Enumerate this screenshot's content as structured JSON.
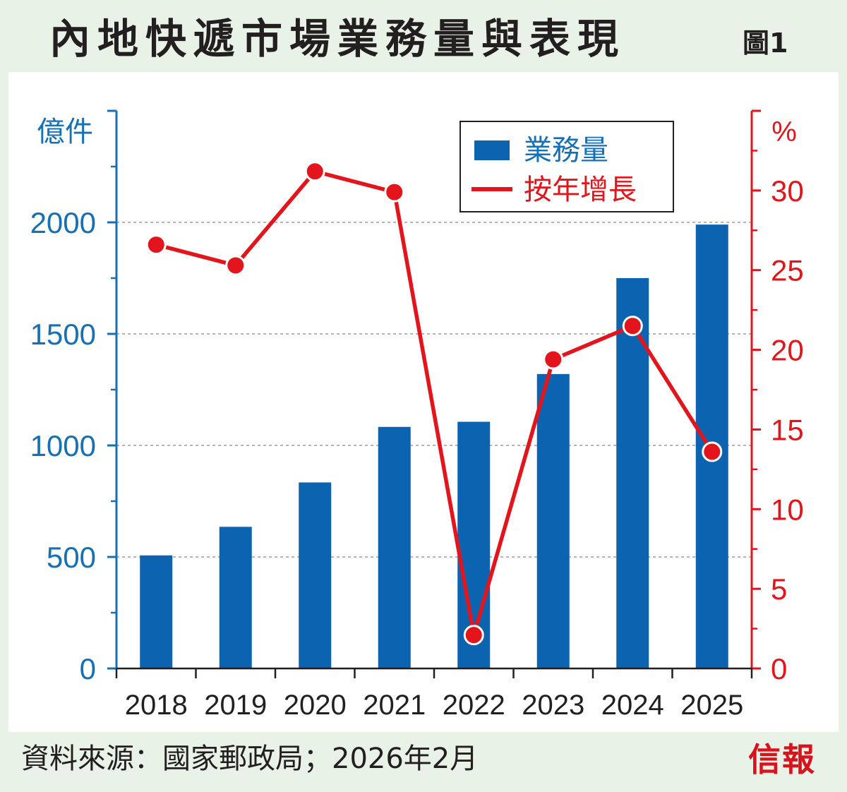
{
  "title": "內地快遞市場業務量與表現",
  "figure_label": "圖1",
  "source": "資料來源：國家郵政局；2026年2月",
  "logo_text": "信報",
  "colors": {
    "bar": "#0c63b0",
    "line": "#e3141b",
    "left_axis": "#1670b5",
    "right_axis": "#e3141b",
    "text": "#231f20"
  },
  "chart_data": {
    "type": "bar",
    "title": "內地快遞市場業務量與表現",
    "categories": [
      "2018",
      "2019",
      "2020",
      "2021",
      "2022",
      "2023",
      "2024",
      "2025"
    ],
    "series": [
      {
        "name": "業務量",
        "type": "bar",
        "axis": "left",
        "values": [
          507,
          635,
          834,
          1083,
          1106,
          1320,
          1750,
          1990
        ]
      },
      {
        "name": "按年增長",
        "type": "line",
        "axis": "right",
        "values": [
          26.6,
          25.3,
          31.2,
          29.9,
          2.1,
          19.4,
          21.5,
          13.6
        ]
      }
    ],
    "ylabel_left": "億件",
    "ylabel_right": "%",
    "ylim_left": [
      0,
      2500
    ],
    "ylim_right": [
      0,
      35
    ],
    "yticks_left": [
      0,
      500,
      1000,
      1500,
      2000
    ],
    "yticks_right": [
      0,
      5,
      10,
      15,
      20,
      25,
      30
    ],
    "gridlines": "dashed",
    "legend_position": "top-right"
  }
}
